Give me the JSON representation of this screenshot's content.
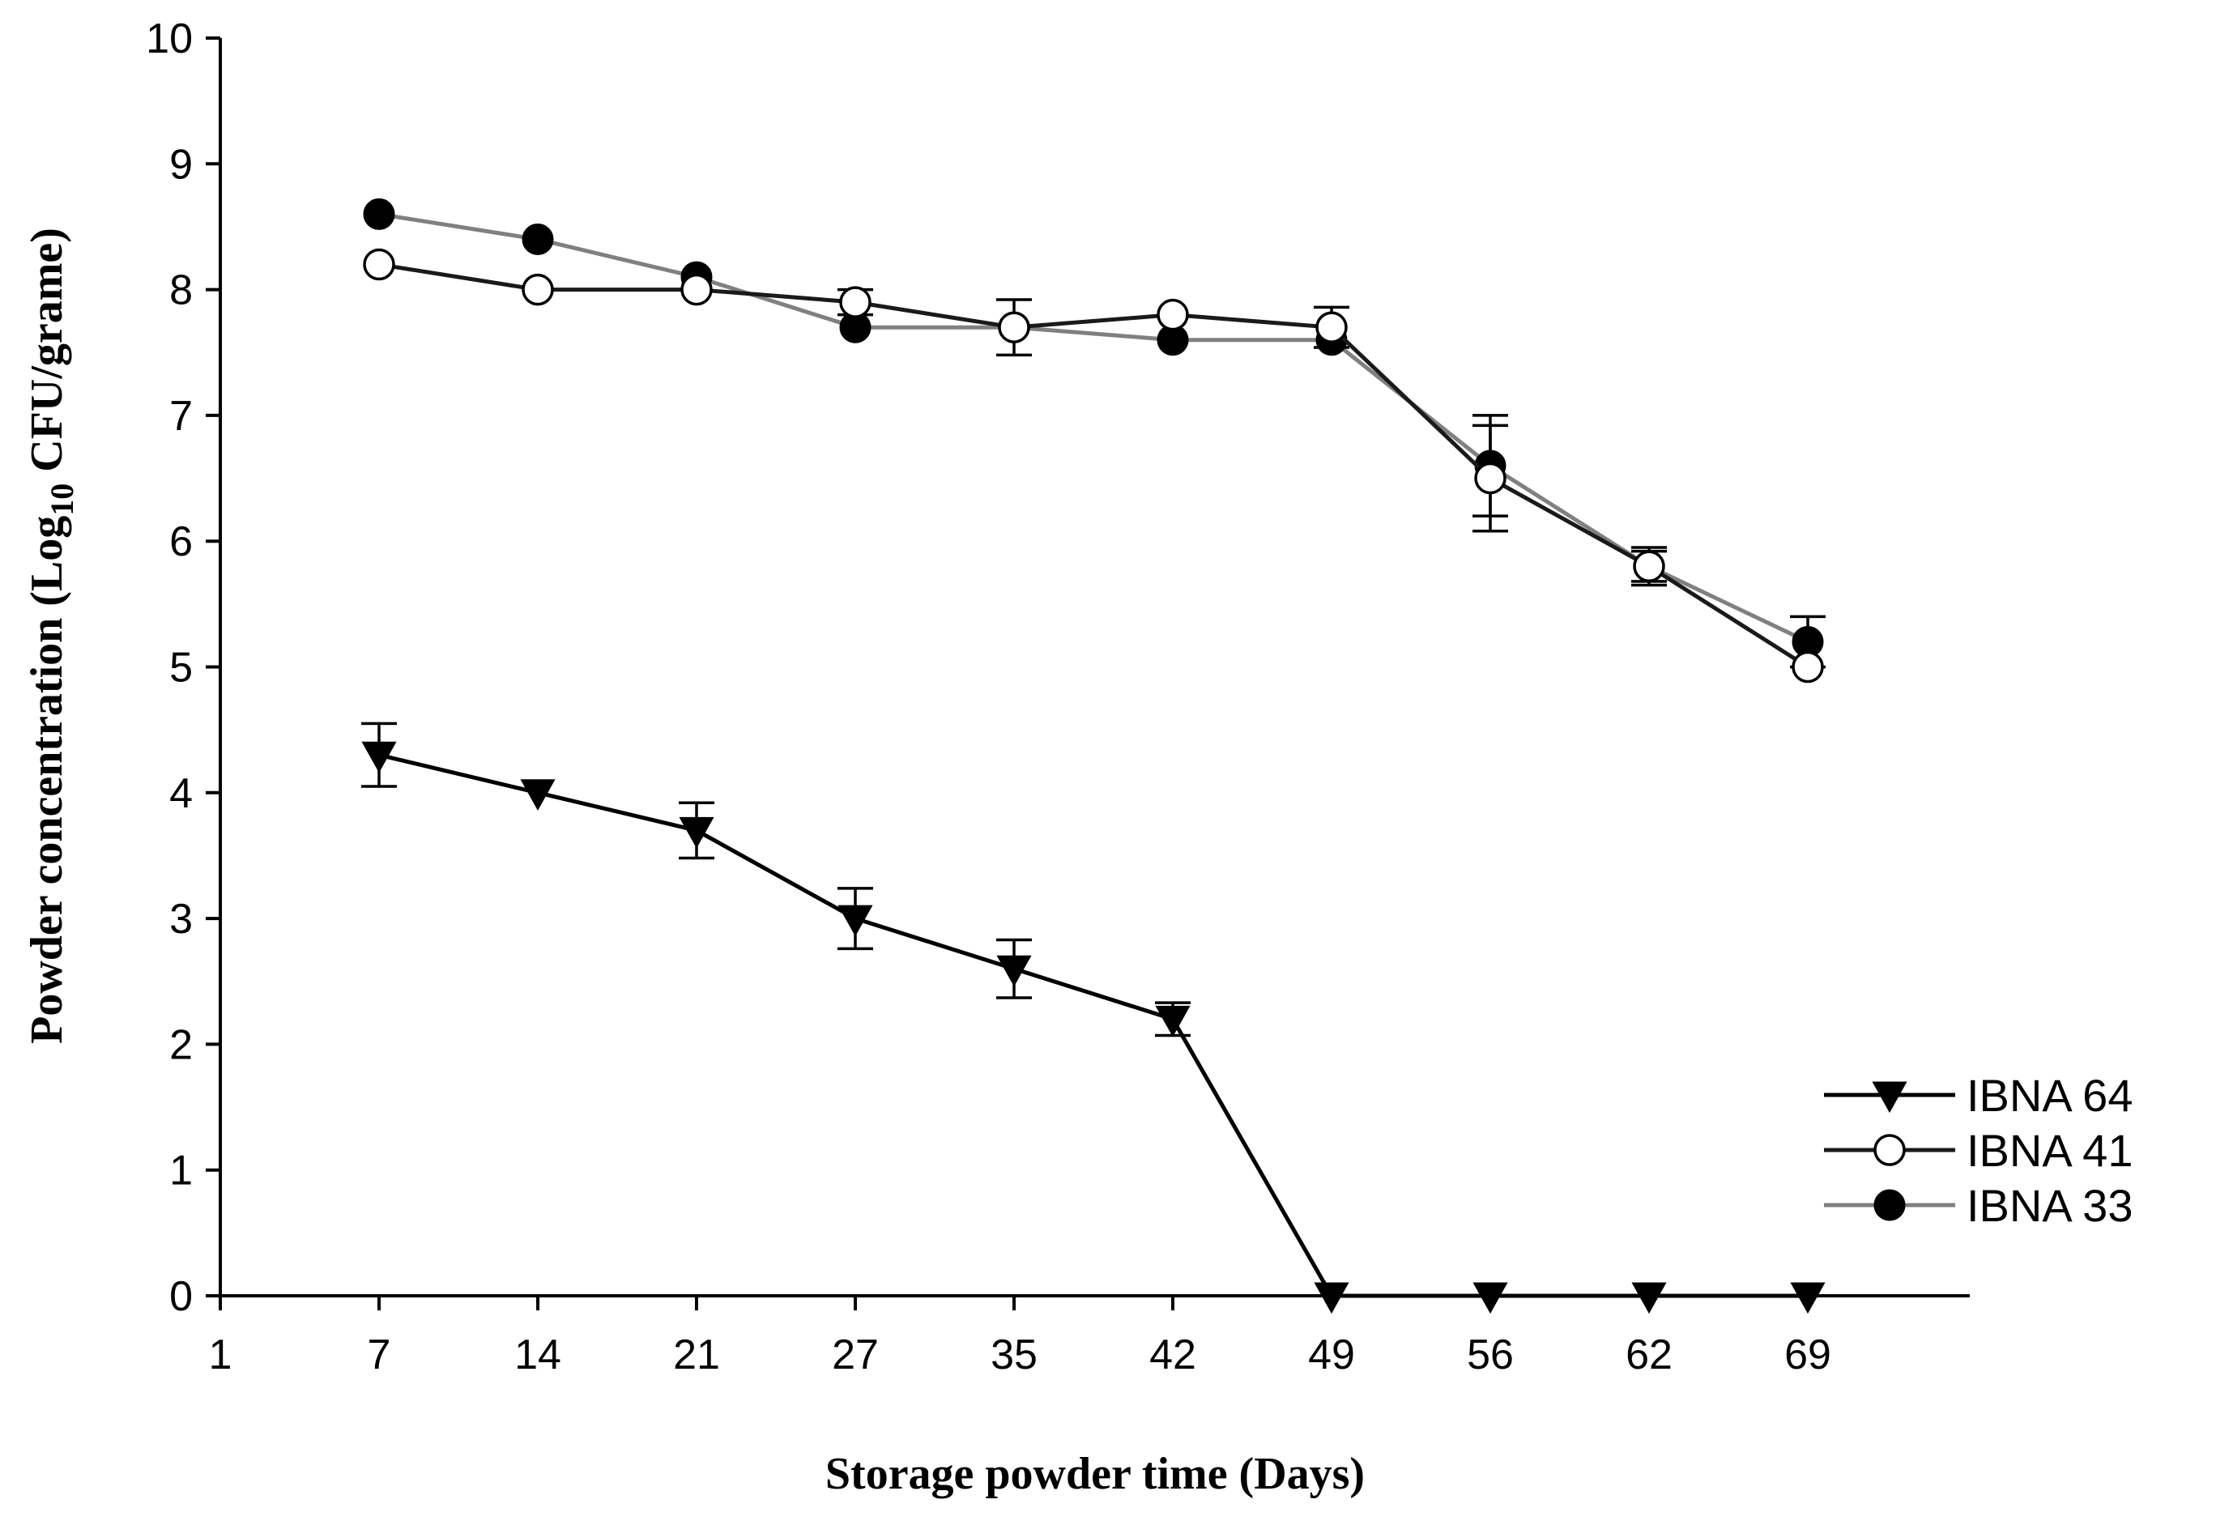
{
  "chart_data": {
    "type": "line",
    "title": "",
    "xlabel": "Storage powder time (Days)",
    "ylabel": {
      "prefix": "Powder concentration (Log",
      "subscript": "10",
      "suffix": " CFU/grame)"
    },
    "ylim": [
      0,
      10
    ],
    "yticks": [
      "0",
      "1",
      "2",
      "3",
      "4",
      "5",
      "6",
      "7",
      "8",
      "9",
      "10"
    ],
    "xtick_labels": [
      "1",
      "7",
      "14",
      "21",
      "27",
      "35",
      "42",
      "49",
      "56",
      "62",
      "69"
    ],
    "grid": false,
    "legend_position": "right",
    "series": [
      {
        "name": "IBNA 64",
        "marker": "triangle-down",
        "line_color": "#000000",
        "marker_fill": "#000000",
        "points": [
          {
            "x": "7",
            "y": 4.3,
            "err": 0.25
          },
          {
            "x": "14",
            "y": 4.0,
            "err": 0.0
          },
          {
            "x": "21",
            "y": 3.7,
            "err": 0.22
          },
          {
            "x": "27",
            "y": 3.0,
            "err": 0.24
          },
          {
            "x": "35",
            "y": 2.6,
            "err": 0.23
          },
          {
            "x": "42",
            "y": 2.2,
            "err": 0.13
          },
          {
            "x": "49",
            "y": 0.0,
            "err": 0.0
          },
          {
            "x": "56",
            "y": 0.0,
            "err": 0.0
          },
          {
            "x": "62",
            "y": 0.0,
            "err": 0.0
          },
          {
            "x": "69",
            "y": 0.0,
            "err": 0.0
          }
        ]
      },
      {
        "name": "IBNA 41",
        "marker": "circle-open",
        "line_color": "#1a1a1a",
        "marker_fill": "#ffffff",
        "points": [
          {
            "x": "7",
            "y": 8.2,
            "err": 0.0
          },
          {
            "x": "14",
            "y": 8.0,
            "err": 0.0
          },
          {
            "x": "21",
            "y": 8.0,
            "err": 0.0
          },
          {
            "x": "27",
            "y": 7.9,
            "err": 0.1
          },
          {
            "x": "35",
            "y": 7.7,
            "err": 0.22
          },
          {
            "x": "42",
            "y": 7.8,
            "err": 0.0
          },
          {
            "x": "49",
            "y": 7.7,
            "err": 0.16
          },
          {
            "x": "56",
            "y": 6.5,
            "err": 0.42
          },
          {
            "x": "62",
            "y": 5.8,
            "err": 0.15
          },
          {
            "x": "69",
            "y": 5.0,
            "err": 0.0
          }
        ]
      },
      {
        "name": "IBNA 33",
        "marker": "circle-filled",
        "line_color": "#808080",
        "marker_fill": "#000000",
        "points": [
          {
            "x": "7",
            "y": 8.6,
            "err": 0.0
          },
          {
            "x": "14",
            "y": 8.4,
            "err": 0.0
          },
          {
            "x": "21",
            "y": 8.1,
            "err": 0.0
          },
          {
            "x": "27",
            "y": 7.7,
            "err": 0.0
          },
          {
            "x": "35",
            "y": 7.7,
            "err": 0.0
          },
          {
            "x": "42",
            "y": 7.6,
            "err": 0.0
          },
          {
            "x": "49",
            "y": 7.6,
            "err": 0.0
          },
          {
            "x": "56",
            "y": 6.6,
            "err": 0.4
          },
          {
            "x": "62",
            "y": 5.8,
            "err": 0.12
          },
          {
            "x": "69",
            "y": 5.2,
            "err": 0.2
          }
        ]
      }
    ]
  }
}
